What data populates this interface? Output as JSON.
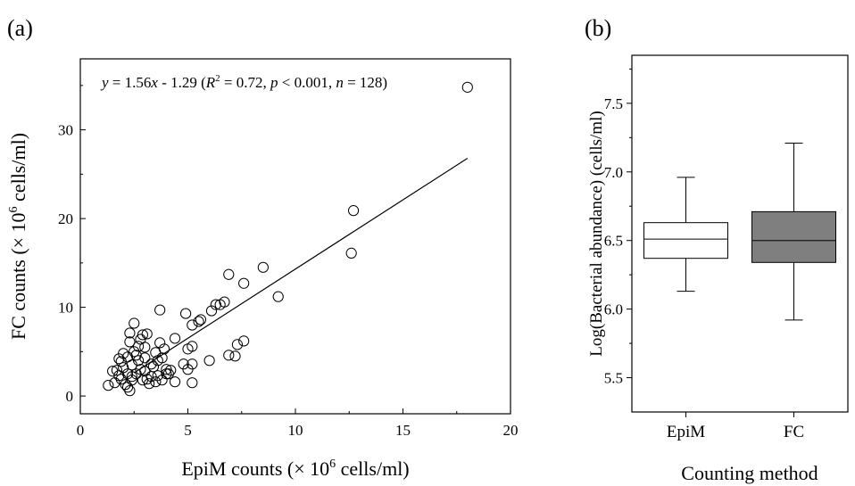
{
  "chart_data": [
    {
      "type": "scatter",
      "panel_label": "(a)",
      "xlabel_main": "EpiM counts (× 10",
      "xlabel_sup": "6",
      "xlabel_tail": " cells/ml)",
      "ylabel_main": "FC counts (× 10",
      "ylabel_sup": "6",
      "ylabel_tail": " cells/ml)",
      "xlim": [
        0,
        20
      ],
      "ylim": [
        -2,
        38
      ],
      "xticks": [
        "0",
        "5",
        "10",
        "15",
        "20"
      ],
      "yticks": [
        "0",
        "10",
        "20",
        "30"
      ],
      "equation": {
        "y": "y",
        "eq": " = 1.56",
        "x": "x",
        "rest": " - 1.29 (",
        "r": "R",
        "r_sup": "2",
        "r_val": " = 0.72, ",
        "p": "p",
        "p_val": " < 0.001, ",
        "n": "n",
        "n_val": " = 128)"
      },
      "fit": {
        "slope": 1.56,
        "intercept": -1.29,
        "x_range": [
          2.5,
          18.0
        ]
      },
      "points": [
        [
          18.0,
          34.8
        ],
        [
          12.7,
          20.9
        ],
        [
          12.6,
          16.1
        ],
        [
          9.2,
          11.2
        ],
        [
          8.5,
          14.5
        ],
        [
          7.6,
          12.7
        ],
        [
          7.6,
          6.2
        ],
        [
          7.3,
          5.8
        ],
        [
          7.2,
          4.5
        ],
        [
          6.9,
          13.7
        ],
        [
          6.9,
          4.6
        ],
        [
          6.7,
          10.6
        ],
        [
          6.5,
          10.3
        ],
        [
          6.3,
          10.3
        ],
        [
          6.1,
          9.6
        ],
        [
          6.0,
          4.0
        ],
        [
          5.6,
          8.6
        ],
        [
          5.5,
          8.4
        ],
        [
          5.2,
          8.0
        ],
        [
          5.2,
          5.6
        ],
        [
          5.2,
          3.6
        ],
        [
          5.2,
          1.5
        ],
        [
          5.0,
          5.3
        ],
        [
          5.0,
          3.0
        ],
        [
          4.9,
          9.3
        ],
        [
          4.8,
          3.6
        ],
        [
          4.4,
          6.5
        ],
        [
          4.4,
          1.6
        ],
        [
          4.1,
          2.5
        ],
        [
          4.0,
          3.0
        ],
        [
          3.9,
          5.3
        ],
        [
          3.8,
          4.3
        ],
        [
          3.7,
          9.7
        ],
        [
          3.7,
          6.0
        ],
        [
          3.6,
          2.3
        ],
        [
          3.5,
          4.9
        ],
        [
          3.4,
          3.3
        ],
        [
          3.3,
          2.2
        ],
        [
          3.2,
          1.4
        ],
        [
          3.1,
          7.0
        ],
        [
          3.0,
          5.5
        ],
        [
          3.0,
          2.8
        ],
        [
          2.9,
          1.8
        ],
        [
          2.8,
          6.4
        ],
        [
          2.7,
          4.0
        ],
        [
          2.6,
          2.5
        ],
        [
          2.5,
          8.2
        ],
        [
          2.5,
          5.0
        ],
        [
          2.4,
          3.5
        ],
        [
          2.4,
          1.8
        ],
        [
          2.3,
          7.1
        ],
        [
          2.3,
          6.1
        ],
        [
          2.3,
          0.6
        ],
        [
          2.2,
          2.5
        ],
        [
          2.2,
          4.4
        ],
        [
          2.1,
          1.3
        ],
        [
          2.0,
          4.8
        ],
        [
          2.0,
          3.2
        ],
        [
          1.9,
          3.9
        ],
        [
          1.9,
          1.9
        ],
        [
          1.8,
          2.3
        ],
        [
          1.7,
          2.9
        ],
        [
          1.6,
          1.5
        ],
        [
          1.5,
          2.8
        ],
        [
          1.3,
          1.2
        ],
        [
          2.8,
          3.0
        ],
        [
          3.3,
          3.6
        ],
        [
          3.5,
          1.6
        ],
        [
          2.6,
          4.6
        ],
        [
          3.0,
          4.3
        ],
        [
          3.8,
          1.8
        ],
        [
          4.2,
          2.9
        ],
        [
          1.8,
          4.2
        ],
        [
          2.2,
          1.0
        ],
        [
          3.6,
          4.0
        ],
        [
          2.9,
          6.9
        ],
        [
          2.4,
          2.2
        ],
        [
          3.1,
          1.9
        ],
        [
          4.0,
          2.5
        ],
        [
          2.7,
          5.6
        ]
      ]
    },
    {
      "type": "box",
      "panel_label": "(b)",
      "xlabel": "Counting method",
      "ylabel": "Log(Bacterial abundance) (cells/ml)",
      "ylim": [
        5.25,
        7.85
      ],
      "yticks": [
        "5.5",
        "6.0",
        "6.5",
        "7.0",
        "7.5"
      ],
      "categories": [
        "EpiM",
        "FC"
      ],
      "boxes": [
        {
          "name": "EpiM",
          "min": 6.13,
          "q1": 6.37,
          "median": 6.51,
          "q3": 6.63,
          "max": 6.96,
          "fill": "#ffffff"
        },
        {
          "name": "FC",
          "min": 5.92,
          "q1": 6.34,
          "median": 6.5,
          "q3": 6.71,
          "max": 7.21,
          "fill": "#7f7f7f"
        }
      ]
    }
  ]
}
